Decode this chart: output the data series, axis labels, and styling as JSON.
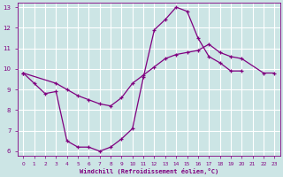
{
  "xlabel": "Windchill (Refroidissement éolien,°C)",
  "bg_color": "#cce5e5",
  "grid_color": "#ffffff",
  "line_color": "#800080",
  "line1_x": [
    0,
    1,
    2,
    3,
    4,
    5,
    6,
    7,
    8,
    9,
    10,
    11,
    12,
    13,
    14,
    15,
    16,
    17,
    18,
    19,
    20
  ],
  "line1_y": [
    9.8,
    9.3,
    8.8,
    8.9,
    6.5,
    6.2,
    6.2,
    6.0,
    6.2,
    6.6,
    7.1,
    9.6,
    11.9,
    12.4,
    13.0,
    12.8,
    11.5,
    10.6,
    10.3,
    9.9,
    9.9
  ],
  "line2_x": [
    0,
    3,
    4,
    5,
    6,
    7,
    8,
    9,
    10,
    11,
    12,
    13,
    14,
    15,
    16,
    17,
    18,
    19,
    20,
    22,
    23
  ],
  "line2_y": [
    9.8,
    9.3,
    9.0,
    8.7,
    8.5,
    8.3,
    8.2,
    8.6,
    9.3,
    9.7,
    10.1,
    10.5,
    10.7,
    10.8,
    10.9,
    11.2,
    10.8,
    10.6,
    10.5,
    9.8,
    9.8
  ],
  "ylim": [
    6,
    13
  ],
  "xlim": [
    0,
    23
  ],
  "yticks": [
    6,
    7,
    8,
    9,
    10,
    11,
    12,
    13
  ],
  "xticks": [
    0,
    1,
    2,
    3,
    4,
    5,
    6,
    7,
    8,
    9,
    10,
    11,
    12,
    13,
    14,
    15,
    16,
    17,
    18,
    19,
    20,
    21,
    22,
    23
  ]
}
